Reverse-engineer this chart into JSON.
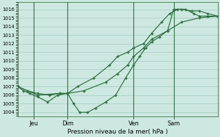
{
  "bg_color": "#cce8e0",
  "grid_color": "#aacfc8",
  "line_color": "#2d6e3e",
  "title": "Pression niveau de la mer( hPa )",
  "ylabel_vals": [
    1004,
    1005,
    1006,
    1007,
    1008,
    1009,
    1010,
    1011,
    1012,
    1013,
    1014,
    1015,
    1016
  ],
  "ylim": [
    1003.5,
    1016.8
  ],
  "xtick_labels": [
    "Jeu",
    "Dim",
    "Ven",
    "Sam"
  ],
  "xtick_positions": [
    0.08,
    0.25,
    0.58,
    0.78
  ],
  "vline_positions": [
    0.08,
    0.25,
    0.58,
    0.78
  ],
  "xlim": [
    0.0,
    1.0
  ],
  "line1_x": [
    0.0,
    0.03,
    0.06,
    0.1,
    0.15,
    0.2,
    0.25,
    0.28,
    0.31,
    0.35,
    0.39,
    0.44,
    0.49,
    0.54,
    0.58,
    0.61,
    0.64,
    0.67,
    0.71,
    0.75,
    0.78,
    0.82,
    0.87,
    0.91,
    0.95,
    1.0
  ],
  "line1_y": [
    1007.0,
    1006.5,
    1006.2,
    1005.8,
    1005.2,
    1006.0,
    1006.2,
    1005.0,
    1004.0,
    1004.0,
    1004.5,
    1005.2,
    1006.0,
    1008.0,
    1009.5,
    1010.5,
    1011.5,
    1012.2,
    1012.8,
    1013.5,
    1016.0,
    1016.0,
    1015.8,
    1015.8,
    1015.5,
    1015.2
  ],
  "line2_x": [
    0.0,
    0.05,
    0.1,
    0.16,
    0.21,
    0.25,
    0.33,
    0.44,
    0.5,
    0.55,
    0.58,
    0.63,
    0.67,
    0.75,
    0.82,
    0.91,
    1.0
  ],
  "line2_y": [
    1007.0,
    1006.5,
    1006.2,
    1006.0,
    1006.2,
    1006.2,
    1006.5,
    1007.5,
    1008.5,
    1009.5,
    1010.5,
    1011.5,
    1012.5,
    1013.5,
    1014.5,
    1015.0,
    1015.2
  ],
  "line3_x": [
    0.0,
    0.1,
    0.21,
    0.25,
    0.3,
    0.38,
    0.46,
    0.5,
    0.55,
    0.58,
    0.63,
    0.67,
    0.72,
    0.76,
    0.8,
    0.84,
    0.88,
    0.91,
    0.95,
    1.0
  ],
  "line3_y": [
    1007.0,
    1006.0,
    1006.2,
    1006.2,
    1007.0,
    1008.0,
    1009.5,
    1010.5,
    1011.0,
    1011.5,
    1012.0,
    1013.2,
    1014.5,
    1015.5,
    1016.0,
    1016.0,
    1015.5,
    1015.2,
    1015.2,
    1015.2
  ]
}
